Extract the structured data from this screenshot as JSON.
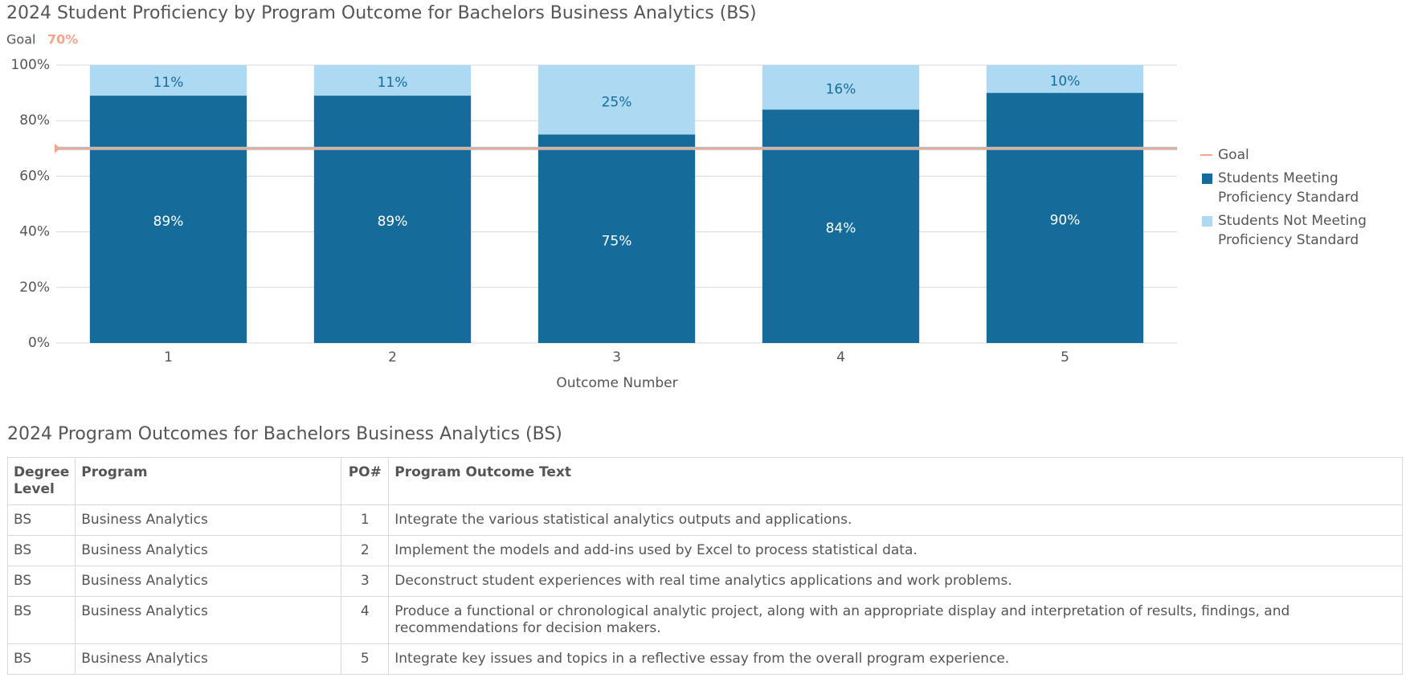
{
  "chart_data": {
    "type": "stacked-bar",
    "title": "2024 Student Proficiency by Program Outcome for Bachelors Business Analytics (BS)",
    "x_label": "Outcome Number",
    "categories": [
      "1",
      "2",
      "3",
      "4",
      "5"
    ],
    "series": [
      {
        "name": "Students Meeting Proficiency Standard",
        "color": "#156c9a",
        "label_color": "#ffffff",
        "values": [
          89,
          89,
          75,
          84,
          90
        ],
        "value_labels": [
          "89%",
          "89%",
          "75%",
          "84%",
          "90%"
        ]
      },
      {
        "name": "Students Not Meeting Proficiency Standard",
        "color": "#aed9f2",
        "label_color": "#156c9a",
        "values": [
          11,
          11,
          25,
          16,
          10
        ],
        "value_labels": [
          "11%",
          "11%",
          "25%",
          "16%",
          "10%"
        ]
      }
    ],
    "goal": {
      "name": "Goal",
      "value": 70,
      "label": "70%",
      "color": "#f4a58a"
    },
    "ylim": [
      0,
      100
    ],
    "yticks": [
      {
        "value": 0,
        "label": "0%"
      },
      {
        "value": 20,
        "label": "20%"
      },
      {
        "value": 40,
        "label": "40%"
      },
      {
        "value": 60,
        "label": "60%"
      },
      {
        "value": 80,
        "label": "80%"
      },
      {
        "value": 100,
        "label": "100%"
      }
    ],
    "grid": true
  },
  "table": {
    "title": "2024 Program Outcomes for Bachelors Business Analytics (BS)",
    "columns": [
      "Degree Level",
      "Program",
      "PO#",
      "Program Outcome Text"
    ],
    "rows": [
      [
        "BS",
        "Business Analytics",
        1,
        "Integrate the various statistical analytics outputs and applications."
      ],
      [
        "BS",
        "Business Analytics",
        2,
        "Implement the models and add-ins used by Excel to process statistical data."
      ],
      [
        "BS",
        "Business Analytics",
        3,
        "Deconstruct student experiences with real time analytics applications and work problems."
      ],
      [
        "BS",
        "Business Analytics",
        4,
        "Produce a functional or chronological analytic project, along with an appropriate display and interpretation of results, findings, and recommendations for decision makers."
      ],
      [
        "BS",
        "Business Analytics",
        5,
        "Integrate key issues and topics in a reflective essay from the overall program experience."
      ]
    ]
  }
}
